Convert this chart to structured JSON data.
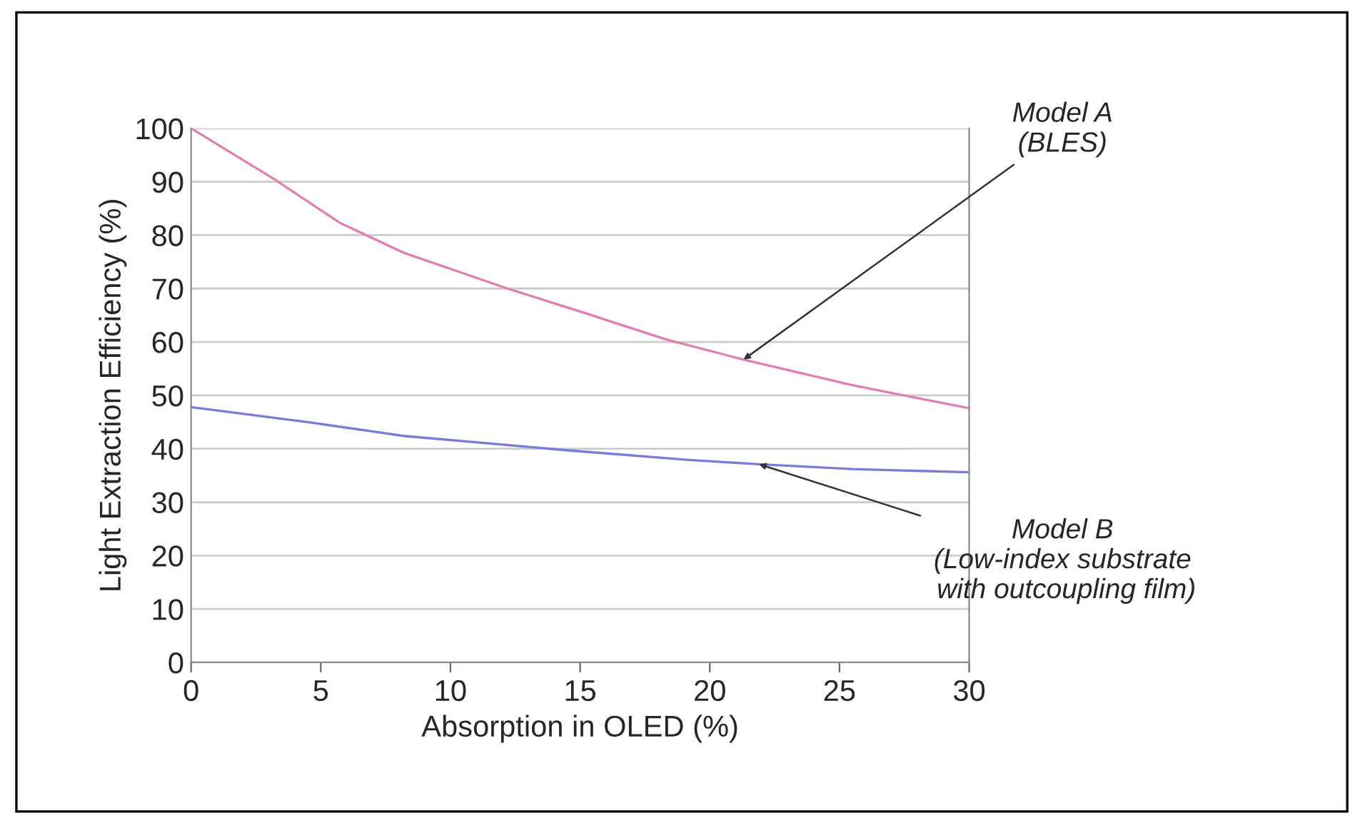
{
  "chart_data": {
    "type": "line",
    "xlabel": "Absorption in OLED (%)",
    "ylabel": "Light Extraction Efficiency (%)",
    "xlim": [
      0,
      30
    ],
    "xticks": [
      0,
      5,
      10,
      15,
      20,
      25,
      30
    ],
    "ylim": [
      0,
      100
    ],
    "yticks": [
      0,
      10,
      20,
      30,
      40,
      50,
      60,
      70,
      80,
      90,
      100
    ],
    "grid": "y",
    "marker": "none",
    "line_style": "solid",
    "series": [
      {
        "color": "#e07fb0",
        "x": [
          0,
          3.2,
          5.7,
          8.2,
          12.2,
          15,
          18.3,
          21.3,
          25.5,
          28,
          30
        ],
        "values": [
          100,
          90.5,
          82.4,
          76.7,
          70,
          65.7,
          60.5,
          56.7,
          51.9,
          49.5,
          47.6
        ]
      },
      {
        "color": "#7b7bd8",
        "x": [
          0,
          4.5,
          8.2,
          14.3,
          19.2,
          21.9,
          25.5,
          30
        ],
        "values": [
          47.8,
          45,
          42.4,
          39.8,
          37.9,
          37.1,
          36.2,
          35.6
        ]
      }
    ],
    "annotations": [
      {
        "text": "Model A\n(BLES)",
        "x": 21.3,
        "y": 56.7
      },
      {
        "text": "Model B\n(Low-index substrate\n with outcoupling film)",
        "x": 21.9,
        "y": 37.1
      }
    ]
  }
}
